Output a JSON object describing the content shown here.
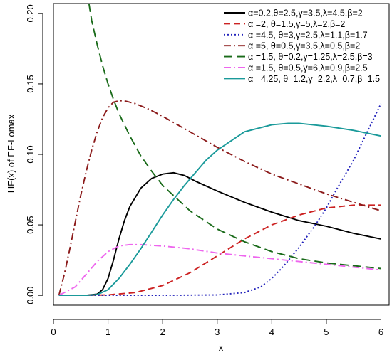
{
  "chart_data": {
    "type": "line",
    "title": "",
    "xlabel": "x",
    "ylabel": "HF(x) of EF-Lomax",
    "xlim": [
      0,
      6.15
    ],
    "ylim": [
      -0.007,
      0.207
    ],
    "xticks": [
      0,
      1,
      2,
      3,
      4,
      5,
      6
    ],
    "yticks": [
      0.0,
      0.05,
      0.1,
      0.15,
      0.2
    ],
    "ytick_labels": [
      "0.00",
      "0.05",
      "0.10",
      "0.15",
      "0.20"
    ],
    "legend_position": "top-right",
    "grid": false,
    "series": [
      {
        "name": "α=0.2,θ=2.5,γ=3.5,λ=4.5,β=2",
        "color": "#000000",
        "dash": "solid",
        "x": [
          0.1,
          0.6,
          0.8,
          0.9,
          1.0,
          1.1,
          1.2,
          1.3,
          1.4,
          1.6,
          1.8,
          2.0,
          2.2,
          2.4,
          2.6,
          3.0,
          3.5,
          4.0,
          4.5,
          5.0,
          5.5,
          6.0
        ],
        "y": [
          0.0,
          0.0,
          0.0008,
          0.004,
          0.012,
          0.025,
          0.04,
          0.053,
          0.063,
          0.076,
          0.083,
          0.086,
          0.087,
          0.085,
          0.081,
          0.074,
          0.066,
          0.059,
          0.053,
          0.049,
          0.044,
          0.04
        ]
      },
      {
        "name": "α =2, θ=1.5,γ=5,λ=2,β=2",
        "color": "#cc2222",
        "dash": "dashed",
        "x": [
          0.1,
          0.6,
          1.0,
          1.5,
          2.0,
          2.5,
          3.0,
          3.5,
          4.0,
          4.5,
          5.0,
          5.5,
          6.0
        ],
        "y": [
          0.0,
          0.0,
          0.0003,
          0.002,
          0.007,
          0.016,
          0.028,
          0.04,
          0.05,
          0.057,
          0.062,
          0.064,
          0.064
        ]
      },
      {
        "name": "α =4.5, θ=3,γ=2.5,λ=1.1,β=1.7",
        "color": "#2222bb",
        "dash": "dotted",
        "x": [
          0.1,
          1.0,
          2.0,
          3.0,
          3.5,
          3.8,
          4.0,
          4.2,
          4.5,
          4.8,
          5.0,
          5.2,
          5.5,
          5.8,
          6.0
        ],
        "y": [
          0.0,
          0.0,
          0.0,
          0.0003,
          0.002,
          0.006,
          0.012,
          0.02,
          0.034,
          0.05,
          0.062,
          0.076,
          0.096,
          0.12,
          0.136
        ]
      },
      {
        "name": "α =5, θ=0.5,γ=3.5,λ=0.5,β=2",
        "color": "#8b1a1a",
        "dash": "dashdot",
        "x": [
          0.1,
          0.2,
          0.3,
          0.4,
          0.5,
          0.6,
          0.7,
          0.8,
          0.9,
          1.0,
          1.1,
          1.2,
          1.3,
          1.5,
          1.75,
          2.0,
          2.5,
          3.0,
          3.5,
          4.0,
          4.5,
          5.0,
          5.5,
          6.0
        ],
        "y": [
          0.0,
          0.015,
          0.033,
          0.052,
          0.071,
          0.088,
          0.103,
          0.116,
          0.126,
          0.133,
          0.137,
          0.138,
          0.138,
          0.136,
          0.132,
          0.127,
          0.116,
          0.105,
          0.095,
          0.086,
          0.079,
          0.072,
          0.066,
          0.06
        ]
      },
      {
        "name": "α =1.5, θ=0.2,γ=1.25,λ=2.5,β=3",
        "color": "#1a6b1a",
        "dash": "longdash",
        "x": [
          0.65,
          0.7,
          0.8,
          0.9,
          1.0,
          1.1,
          1.2,
          1.4,
          1.6,
          1.8,
          2.0,
          2.5,
          3.0,
          3.5,
          4.0,
          4.5,
          5.0,
          5.5,
          6.0
        ],
        "y": [
          0.207,
          0.195,
          0.178,
          0.163,
          0.15,
          0.139,
          0.129,
          0.113,
          0.099,
          0.088,
          0.078,
          0.06,
          0.047,
          0.038,
          0.031,
          0.026,
          0.023,
          0.021,
          0.019
        ]
      },
      {
        "name": "α =1.5, θ=0.5,γ=6,λ=0.9,β=2.5",
        "color": "#ee66ee",
        "dash": "dashdot",
        "x": [
          0.1,
          0.4,
          0.6,
          0.8,
          1.0,
          1.2,
          1.4,
          1.6,
          2.0,
          2.5,
          3.0,
          3.5,
          4.0,
          4.5,
          5.0,
          5.5,
          6.0
        ],
        "y": [
          0.0,
          0.006,
          0.015,
          0.024,
          0.031,
          0.035,
          0.036,
          0.036,
          0.035,
          0.033,
          0.03,
          0.028,
          0.026,
          0.024,
          0.022,
          0.02,
          0.018
        ]
      },
      {
        "name": "α =4.25, θ=1.2,γ=2.2,λ=0.7,β=1.5",
        "color": "#1a9a9a",
        "dash": "solid",
        "x": [
          0.1,
          0.6,
          0.8,
          1.0,
          1.2,
          1.4,
          1.6,
          1.8,
          2.0,
          2.2,
          2.4,
          2.6,
          2.8,
          3.0,
          3.5,
          4.0,
          4.3,
          4.5,
          5.0,
          5.5,
          6.0
        ],
        "y": [
          0.0,
          0.0,
          0.0005,
          0.004,
          0.012,
          0.022,
          0.033,
          0.045,
          0.057,
          0.068,
          0.078,
          0.087,
          0.096,
          0.103,
          0.116,
          0.121,
          0.122,
          0.122,
          0.12,
          0.117,
          0.113
        ]
      }
    ]
  }
}
